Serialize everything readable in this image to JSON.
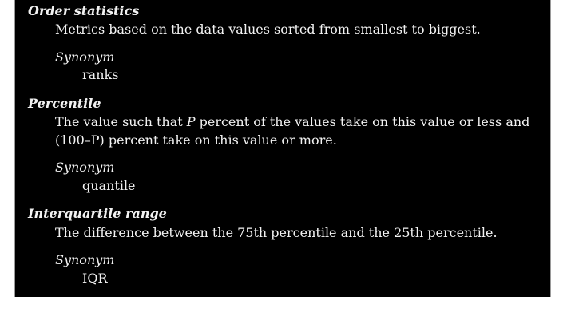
{
  "entries": [
    {
      "term": "Order statistics",
      "definition": "Metrics based on the data values sorted from smallest to biggest.",
      "synonym_label": "Synonym",
      "synonym": "ranks"
    },
    {
      "term": "Percentile",
      "definition_before": "The value such that ",
      "definition_var": "P",
      "definition_after": " percent of the values take on this value or less and (100–P) percent take on this value or more.",
      "synonym_label": "Synonym",
      "synonym": "quantile"
    },
    {
      "term": "Interquartile range",
      "definition": "The difference between the 75th percentile and the 25th percentile.",
      "synonym_label": "Synonym",
      "synonym": "IQR"
    }
  ]
}
